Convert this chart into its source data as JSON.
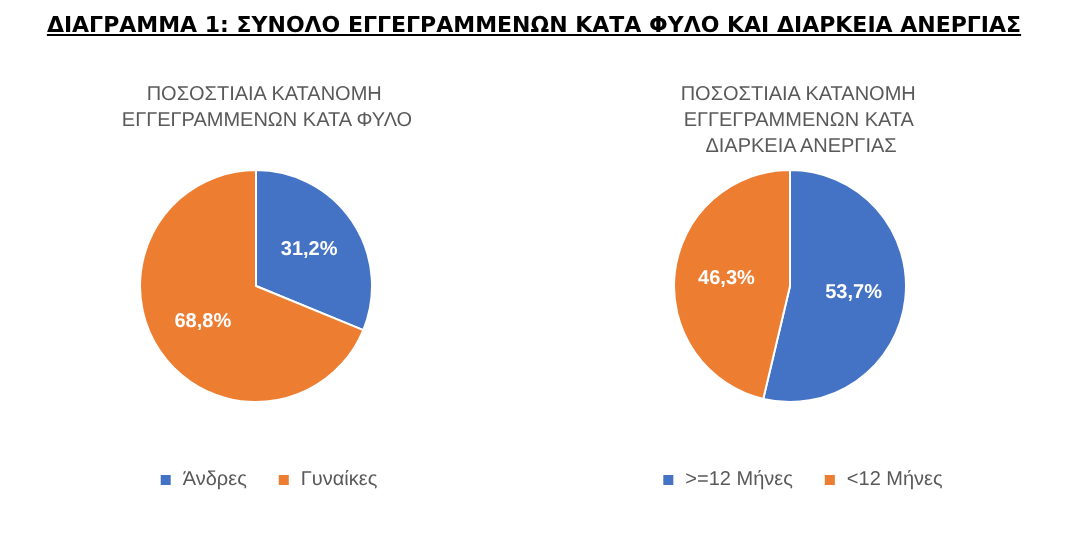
{
  "chart_data": [
    {
      "type": "pie",
      "title": "ΔΙΑΓΡΑΜΜΑ 1: ΣΥΝΟΛΟ ΕΓΓΕΓΡΑΜΜΕΝΩΝ ΚΑΤΑ ΦΥΛΟ ΚΑΙ ΔΙΑΡΚΕΙΑ ΑΝΕΡΓΙΑΣ",
      "subtitle": "ΠΟΣΟΣΤΙΑΙΑ ΚΑΤΑΝΟΜΗ ΕΓΓΕΓΡΑΜΜΕΝΩΝ ΚΑΤΑ ΦΥΛΟ",
      "categories": [
        "Άνδρες",
        "Γυναίκες"
      ],
      "values": [
        31.2,
        68.8
      ],
      "colors": [
        "#4472c4",
        "#ed7d31"
      ],
      "value_labels": [
        "31,2%",
        "68,8%"
      ],
      "legend": "bottom"
    },
    {
      "type": "pie",
      "subtitle": "ΠΟΣΟΣΤΙΑΙΑ ΚΑΤΑΝΟΜΗ ΕΓΓΕΓΡΑΜΜΕΝΩΝ ΚΑΤΑ ΔΙΑΡΚΕΙΑ ΑΝΕΡΓΙΑΣ",
      "categories": [
        ">=12 Μήνες",
        "<12 Μήνες"
      ],
      "values": [
        53.7,
        46.3
      ],
      "colors": [
        "#4472c4",
        "#ed7d31"
      ],
      "value_labels": [
        "53,7%",
        "46,3%"
      ],
      "legend": "bottom"
    }
  ]
}
